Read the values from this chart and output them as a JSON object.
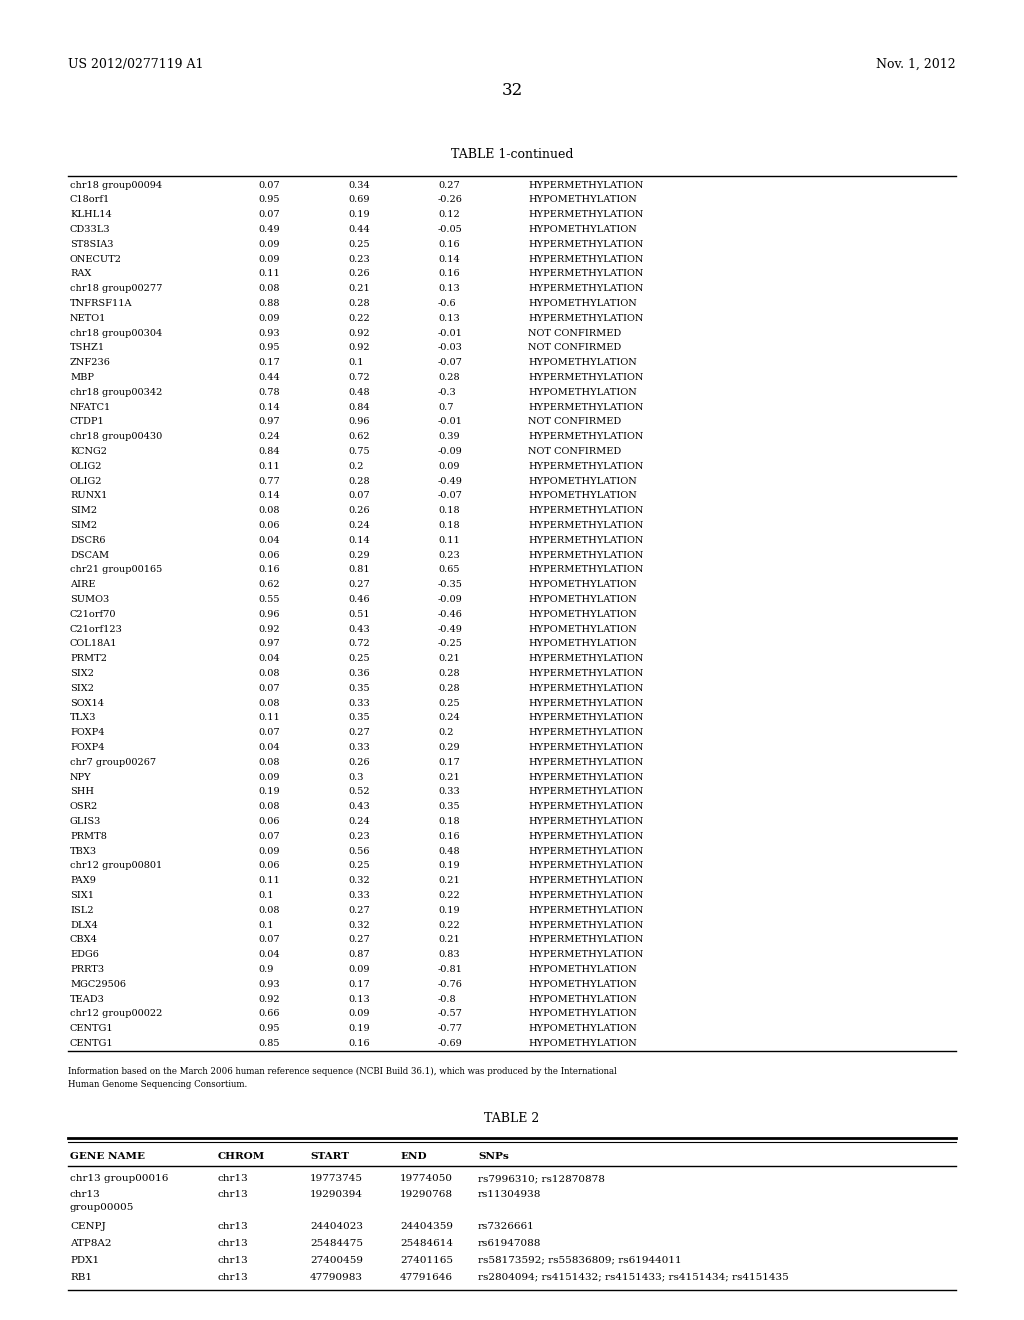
{
  "header_left": "US 2012/0277119 A1",
  "header_right": "Nov. 1, 2012",
  "page_number": "32",
  "table1_title": "TABLE 1-continued",
  "table1_data": [
    [
      "chr18 group00094",
      "0.07",
      "0.34",
      "0.27",
      "HYPERMETHYLATION"
    ],
    [
      "C18orf1",
      "0.95",
      "0.69",
      "-0.26",
      "HYPOMETHYLATION"
    ],
    [
      "KLHL14",
      "0.07",
      "0.19",
      "0.12",
      "HYPERMETHYLATION"
    ],
    [
      "CD33L3",
      "0.49",
      "0.44",
      "-0.05",
      "HYPOMETHYLATION"
    ],
    [
      "ST8SIA3",
      "0.09",
      "0.25",
      "0.16",
      "HYPERMETHYLATION"
    ],
    [
      "ONECUT2",
      "0.09",
      "0.23",
      "0.14",
      "HYPERMETHYLATION"
    ],
    [
      "RAX",
      "0.11",
      "0.26",
      "0.16",
      "HYPERMETHYLATION"
    ],
    [
      "chr18 group00277",
      "0.08",
      "0.21",
      "0.13",
      "HYPERMETHYLATION"
    ],
    [
      "TNFRSF11A",
      "0.88",
      "0.28",
      "-0.6",
      "HYPOMETHYLATION"
    ],
    [
      "NETO1",
      "0.09",
      "0.22",
      "0.13",
      "HYPERMETHYLATION"
    ],
    [
      "chr18 group00304",
      "0.93",
      "0.92",
      "-0.01",
      "NOT CONFIRMED"
    ],
    [
      "TSHZ1",
      "0.95",
      "0.92",
      "-0.03",
      "NOT CONFIRMED"
    ],
    [
      "ZNF236",
      "0.17",
      "0.1",
      "-0.07",
      "HYPOMETHYLATION"
    ],
    [
      "MBP",
      "0.44",
      "0.72",
      "0.28",
      "HYPERMETHYLATION"
    ],
    [
      "chr18 group00342",
      "0.78",
      "0.48",
      "-0.3",
      "HYPOMETHYLATION"
    ],
    [
      "NFATC1",
      "0.14",
      "0.84",
      "0.7",
      "HYPERMETHYLATION"
    ],
    [
      "CTDP1",
      "0.97",
      "0.96",
      "-0.01",
      "NOT CONFIRMED"
    ],
    [
      "chr18 group00430",
      "0.24",
      "0.62",
      "0.39",
      "HYPERMETHYLATION"
    ],
    [
      "KCNG2",
      "0.84",
      "0.75",
      "-0.09",
      "NOT CONFIRMED"
    ],
    [
      "OLIG2",
      "0.11",
      "0.2",
      "0.09",
      "HYPERMETHYLATION"
    ],
    [
      "OLIG2",
      "0.77",
      "0.28",
      "-0.49",
      "HYPOMETHYLATION"
    ],
    [
      "RUNX1",
      "0.14",
      "0.07",
      "-0.07",
      "HYPOMETHYLATION"
    ],
    [
      "SIM2",
      "0.08",
      "0.26",
      "0.18",
      "HYPERMETHYLATION"
    ],
    [
      "SIM2",
      "0.06",
      "0.24",
      "0.18",
      "HYPERMETHYLATION"
    ],
    [
      "DSCR6",
      "0.04",
      "0.14",
      "0.11",
      "HYPERMETHYLATION"
    ],
    [
      "DSCAM",
      "0.06",
      "0.29",
      "0.23",
      "HYPERMETHYLATION"
    ],
    [
      "chr21 group00165",
      "0.16",
      "0.81",
      "0.65",
      "HYPERMETHYLATION"
    ],
    [
      "AIRE",
      "0.62",
      "0.27",
      "-0.35",
      "HYPOMETHYLATION"
    ],
    [
      "SUMO3",
      "0.55",
      "0.46",
      "-0.09",
      "HYPOMETHYLATION"
    ],
    [
      "C21orf70",
      "0.96",
      "0.51",
      "-0.46",
      "HYPOMETHYLATION"
    ],
    [
      "C21orf123",
      "0.92",
      "0.43",
      "-0.49",
      "HYPOMETHYLATION"
    ],
    [
      "COL18A1",
      "0.97",
      "0.72",
      "-0.25",
      "HYPOMETHYLATION"
    ],
    [
      "PRMT2",
      "0.04",
      "0.25",
      "0.21",
      "HYPERMETHYLATION"
    ],
    [
      "SIX2",
      "0.08",
      "0.36",
      "0.28",
      "HYPERMETHYLATION"
    ],
    [
      "SIX2",
      "0.07",
      "0.35",
      "0.28",
      "HYPERMETHYLATION"
    ],
    [
      "SOX14",
      "0.08",
      "0.33",
      "0.25",
      "HYPERMETHYLATION"
    ],
    [
      "TLX3",
      "0.11",
      "0.35",
      "0.24",
      "HYPERMETHYLATION"
    ],
    [
      "FOXP4",
      "0.07",
      "0.27",
      "0.2",
      "HYPERMETHYLATION"
    ],
    [
      "FOXP4",
      "0.04",
      "0.33",
      "0.29",
      "HYPERMETHYLATION"
    ],
    [
      "chr7 group00267",
      "0.08",
      "0.26",
      "0.17",
      "HYPERMETHYLATION"
    ],
    [
      "NPY",
      "0.09",
      "0.3",
      "0.21",
      "HYPERMETHYLATION"
    ],
    [
      "SHH",
      "0.19",
      "0.52",
      "0.33",
      "HYPERMETHYLATION"
    ],
    [
      "OSR2",
      "0.08",
      "0.43",
      "0.35",
      "HYPERMETHYLATION"
    ],
    [
      "GLIS3",
      "0.06",
      "0.24",
      "0.18",
      "HYPERMETHYLATION"
    ],
    [
      "PRMT8",
      "0.07",
      "0.23",
      "0.16",
      "HYPERMETHYLATION"
    ],
    [
      "TBX3",
      "0.09",
      "0.56",
      "0.48",
      "HYPERMETHYLATION"
    ],
    [
      "chr12 group00801",
      "0.06",
      "0.25",
      "0.19",
      "HYPERMETHYLATION"
    ],
    [
      "PAX9",
      "0.11",
      "0.32",
      "0.21",
      "HYPERMETHYLATION"
    ],
    [
      "SIX1",
      "0.1",
      "0.33",
      "0.22",
      "HYPERMETHYLATION"
    ],
    [
      "ISL2",
      "0.08",
      "0.27",
      "0.19",
      "HYPERMETHYLATION"
    ],
    [
      "DLX4",
      "0.1",
      "0.32",
      "0.22",
      "HYPERMETHYLATION"
    ],
    [
      "CBX4",
      "0.07",
      "0.27",
      "0.21",
      "HYPERMETHYLATION"
    ],
    [
      "EDG6",
      "0.04",
      "0.87",
      "0.83",
      "HYPERMETHYLATION"
    ],
    [
      "PRRT3",
      "0.9",
      "0.09",
      "-0.81",
      "HYPOMETHYLATION"
    ],
    [
      "MGC29506",
      "0.93",
      "0.17",
      "-0.76",
      "HYPOMETHYLATION"
    ],
    [
      "TEAD3",
      "0.92",
      "0.13",
      "-0.8",
      "HYPOMETHYLATION"
    ],
    [
      "chr12 group00022",
      "0.66",
      "0.09",
      "-0.57",
      "HYPOMETHYLATION"
    ],
    [
      "CENTG1",
      "0.95",
      "0.19",
      "-0.77",
      "HYPOMETHYLATION"
    ],
    [
      "CENTG1",
      "0.85",
      "0.16",
      "-0.69",
      "HYPOMETHYLATION"
    ]
  ],
  "footnote_line1": "Information based on the March 2006 human reference sequence (NCBI Build 36.1), which was produced by the International",
  "footnote_line2": "Human Genome Sequencing Consortium.",
  "table2_title": "TABLE 2",
  "table2_headers": [
    "GENE NAME",
    "CHROM",
    "START",
    "END",
    "SNPs"
  ],
  "table2_data": [
    [
      "chr13 group00016",
      "chr13",
      "19773745",
      "19774050",
      "rs7996310; rs12870878"
    ],
    [
      "chr13",
      "chr13",
      "19290394",
      "19290768",
      "rs11304938"
    ],
    [
      "group00005",
      "",
      "",
      "",
      ""
    ],
    [
      "CENPJ",
      "chr13",
      "24404023",
      "24404359",
      "rs7326661"
    ],
    [
      "ATP8A2",
      "chr13",
      "25484475",
      "25484614",
      "rs61947088"
    ],
    [
      "PDX1",
      "chr13",
      "27400459",
      "27401165",
      "rs58173592; rs55836809; rs61944011"
    ],
    [
      "RB1",
      "chr13",
      "47790983",
      "47791646",
      "rs2804094; rs4151432; rs4151433; rs4151434; rs4151435"
    ]
  ]
}
